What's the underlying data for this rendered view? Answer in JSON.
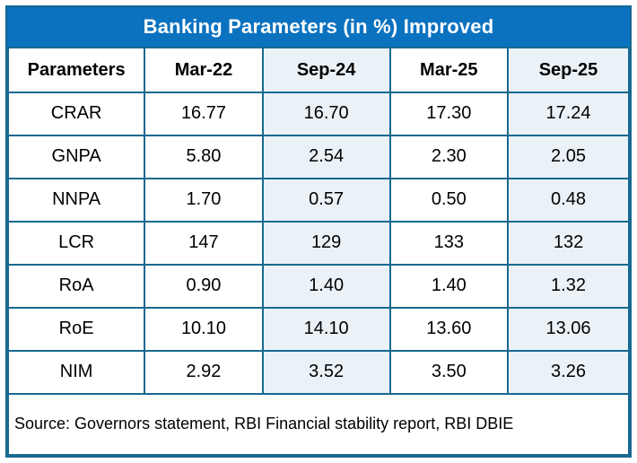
{
  "title_bar": {
    "text": "Banking Parameters (in %) Improved"
  },
  "chart_data": {
    "type": "table",
    "title": "Banking Parameters (in %) Improved",
    "columns": [
      "Parameters",
      "Mar-22",
      "Sep-24",
      "Mar-25",
      "Sep-25"
    ],
    "rows": [
      {
        "label": "CRAR",
        "values": [
          "16.77",
          "16.70",
          "17.30",
          "17.24"
        ]
      },
      {
        "label": "GNPA",
        "values": [
          "5.80",
          "2.54",
          "2.30",
          "2.05"
        ]
      },
      {
        "label": "NNPA",
        "values": [
          "1.70",
          "0.57",
          "0.50",
          "0.48"
        ]
      },
      {
        "label": "LCR",
        "values": [
          "147",
          "129",
          "133",
          "132"
        ]
      },
      {
        "label": "RoA",
        "values": [
          "0.90",
          "1.40",
          "1.40",
          "1.32"
        ]
      },
      {
        "label": "RoE",
        "values": [
          "10.10",
          "14.10",
          "13.60",
          "13.06"
        ]
      },
      {
        "label": "NIM",
        "values": [
          "2.92",
          "3.52",
          "3.50",
          "3.26"
        ]
      }
    ],
    "highlighted_columns": [
      "Sep-24",
      "Sep-25"
    ],
    "layout_hints": {
      "grid": true,
      "unit": "percent"
    }
  },
  "footer": {
    "source": "Source: Governors statement, RBI Financial stability report, RBI DBIE"
  },
  "colors": {
    "title_bg": "#0B72C0",
    "grid_border": "#17698F",
    "shaded_column_bg": "#EAF1F7",
    "title_text": "#FFFFFF",
    "cell_text": "#000000"
  }
}
